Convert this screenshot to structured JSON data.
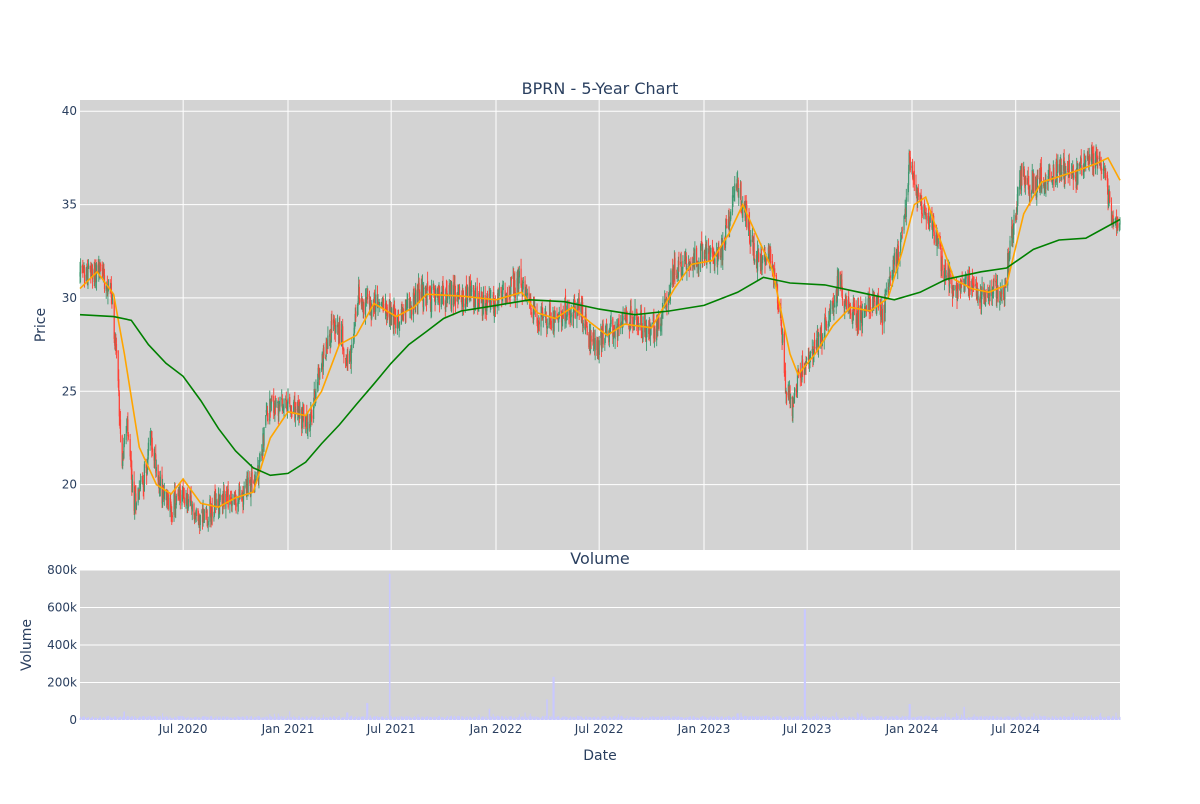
{
  "chart_data": [
    {
      "type": "candlestick",
      "title": "BPRN - 5-Year Chart",
      "xlabel": "",
      "ylabel": "Price",
      "ylim": [
        16.5,
        40.6
      ],
      "y_ticks": [
        20,
        25,
        30,
        35,
        40
      ],
      "xlim": [
        "2020-01-02",
        "2024-12-31"
      ],
      "grid": true,
      "legend": "none",
      "colors": {
        "increasing": "#3d9970",
        "decreasing": "#ff4136",
        "ma_short": "#ffa500",
        "ma_long": "#008000",
        "plot_bg": "#d3d3d3"
      },
      "price_keypoints": [
        [
          "2020-01-02",
          31.2
        ],
        [
          "2020-02-10",
          31.5
        ],
        [
          "2020-02-25",
          30.5
        ],
        [
          "2020-03-05",
          27.5
        ],
        [
          "2020-03-16",
          21.5
        ],
        [
          "2020-03-25",
          23.0
        ],
        [
          "2020-04-05",
          19.0
        ],
        [
          "2020-04-25",
          20.5
        ],
        [
          "2020-05-05",
          22.5
        ],
        [
          "2020-05-25",
          19.5
        ],
        [
          "2020-06-10",
          18.8
        ],
        [
          "2020-07-01",
          19.5
        ],
        [
          "2020-07-25",
          18.2
        ],
        [
          "2020-08-20",
          18.6
        ],
        [
          "2020-09-10",
          19.5
        ],
        [
          "2020-10-01",
          19.0
        ],
        [
          "2020-10-25",
          20.0
        ],
        [
          "2020-11-10",
          20.5
        ],
        [
          "2020-11-25",
          24.0
        ],
        [
          "2020-12-20",
          24.2
        ],
        [
          "2021-01-20",
          23.8
        ],
        [
          "2021-02-08",
          23.0
        ],
        [
          "2021-02-20",
          25.5
        ],
        [
          "2021-03-05",
          27.0
        ],
        [
          "2021-03-20",
          28.5
        ],
        [
          "2021-04-05",
          28.0
        ],
        [
          "2021-04-20",
          26.5
        ],
        [
          "2021-05-05",
          30.0
        ],
        [
          "2021-05-25",
          29.5
        ],
        [
          "2021-06-20",
          29.8
        ],
        [
          "2021-07-10",
          28.8
        ],
        [
          "2021-08-01",
          29.5
        ],
        [
          "2021-08-20",
          30.3
        ],
        [
          "2021-09-20",
          30.0
        ],
        [
          "2021-10-25",
          30.2
        ],
        [
          "2021-11-20",
          30.0
        ],
        [
          "2021-12-20",
          29.6
        ],
        [
          "2022-01-20",
          30.2
        ],
        [
          "2022-02-10",
          30.8
        ],
        [
          "2022-03-01",
          29.8
        ],
        [
          "2022-03-15",
          29.0
        ],
        [
          "2022-04-15",
          29.0
        ],
        [
          "2022-05-10",
          29.5
        ],
        [
          "2022-06-01",
          29.2
        ],
        [
          "2022-06-20",
          27.5
        ],
        [
          "2022-07-15",
          28.0
        ],
        [
          "2022-08-10",
          28.5
        ],
        [
          "2022-09-01",
          29.0
        ],
        [
          "2022-09-25",
          28.0
        ],
        [
          "2022-10-20",
          29.0
        ],
        [
          "2022-11-10",
          31.5
        ],
        [
          "2022-12-10",
          32.0
        ],
        [
          "2023-01-01",
          32.5
        ],
        [
          "2023-01-25",
          32.0
        ],
        [
          "2023-02-10",
          33.5
        ],
        [
          "2023-02-25",
          36.5
        ],
        [
          "2023-03-15",
          34.5
        ],
        [
          "2023-04-01",
          32.0
        ],
        [
          "2023-04-25",
          32.2
        ],
        [
          "2023-05-15",
          29.5
        ],
        [
          "2023-05-25",
          25.0
        ],
        [
          "2023-06-05",
          24.3
        ],
        [
          "2023-06-20",
          26.0
        ],
        [
          "2023-07-15",
          27.5
        ],
        [
          "2023-08-10",
          29.0
        ],
        [
          "2023-08-25",
          31.0
        ],
        [
          "2023-09-10",
          29.5
        ],
        [
          "2023-10-01",
          29.0
        ],
        [
          "2023-10-25",
          30.0
        ],
        [
          "2023-11-10",
          29.0
        ],
        [
          "2023-11-25",
          31.5
        ],
        [
          "2023-12-15",
          33.0
        ],
        [
          "2023-12-28",
          37.5
        ],
        [
          "2024-01-15",
          35.0
        ],
        [
          "2024-02-05",
          34.0
        ],
        [
          "2024-02-25",
          31.5
        ],
        [
          "2024-03-15",
          30.5
        ],
        [
          "2024-04-10",
          31.0
        ],
        [
          "2024-04-25",
          30.0
        ],
        [
          "2024-05-20",
          30.5
        ],
        [
          "2024-06-10",
          30.0
        ],
        [
          "2024-06-20",
          32.5
        ],
        [
          "2024-07-10",
          36.5
        ],
        [
          "2024-08-05",
          36.0
        ],
        [
          "2024-08-25",
          36.5
        ],
        [
          "2024-09-20",
          36.8
        ],
        [
          "2024-10-15",
          36.5
        ],
        [
          "2024-11-05",
          37.5
        ],
        [
          "2024-12-01",
          37.0
        ],
        [
          "2024-12-18",
          34.0
        ],
        [
          "2024-12-31",
          34.2
        ]
      ],
      "ma_short": [
        [
          "2020-01-02",
          30.5
        ],
        [
          "2020-02-01",
          31.4
        ],
        [
          "2020-03-01",
          30.2
        ],
        [
          "2020-03-20",
          27.0
        ],
        [
          "2020-04-15",
          22.0
        ],
        [
          "2020-05-15",
          20.0
        ],
        [
          "2020-06-10",
          19.5
        ],
        [
          "2020-07-01",
          20.3
        ],
        [
          "2020-08-01",
          19.0
        ],
        [
          "2020-09-01",
          18.8
        ],
        [
          "2020-10-01",
          19.3
        ],
        [
          "2020-11-01",
          19.6
        ],
        [
          "2020-12-01",
          22.5
        ],
        [
          "2021-01-01",
          23.9
        ],
        [
          "2021-02-01",
          23.7
        ],
        [
          "2021-03-01",
          25.0
        ],
        [
          "2021-04-01",
          27.5
        ],
        [
          "2021-05-01",
          28.0
        ],
        [
          "2021-06-01",
          29.7
        ],
        [
          "2021-07-10",
          29.0
        ],
        [
          "2021-08-10",
          29.5
        ],
        [
          "2021-09-01",
          30.2
        ],
        [
          "2021-11-01",
          30.1
        ],
        [
          "2022-01-01",
          29.9
        ],
        [
          "2022-02-15",
          30.3
        ],
        [
          "2022-03-15",
          29.2
        ],
        [
          "2022-04-15",
          28.9
        ],
        [
          "2022-05-15",
          29.5
        ],
        [
          "2022-06-15",
          28.7
        ],
        [
          "2022-07-15",
          28.0
        ],
        [
          "2022-08-15",
          28.6
        ],
        [
          "2022-10-01",
          28.4
        ],
        [
          "2022-11-10",
          30.5
        ],
        [
          "2022-12-10",
          31.8
        ],
        [
          "2023-01-15",
          32.0
        ],
        [
          "2023-02-15",
          33.5
        ],
        [
          "2023-03-10",
          35.0
        ],
        [
          "2023-04-01",
          33.5
        ],
        [
          "2023-05-01",
          31.5
        ],
        [
          "2023-06-01",
          27.0
        ],
        [
          "2023-06-15",
          25.9
        ],
        [
          "2023-07-15",
          27.0
        ],
        [
          "2023-08-15",
          28.5
        ],
        [
          "2023-09-15",
          29.5
        ],
        [
          "2023-10-20",
          29.3
        ],
        [
          "2023-11-20",
          30.0
        ],
        [
          "2023-12-15",
          32.5
        ],
        [
          "2024-01-05",
          35.0
        ],
        [
          "2024-01-25",
          35.4
        ],
        [
          "2024-02-15",
          33.5
        ],
        [
          "2024-03-15",
          31.0
        ],
        [
          "2024-04-15",
          30.5
        ],
        [
          "2024-05-15",
          30.3
        ],
        [
          "2024-06-15",
          30.7
        ],
        [
          "2024-07-15",
          34.5
        ],
        [
          "2024-08-15",
          36.2
        ],
        [
          "2024-09-15",
          36.5
        ],
        [
          "2024-10-15",
          36.8
        ],
        [
          "2024-11-20",
          37.2
        ],
        [
          "2024-12-10",
          37.5
        ],
        [
          "2024-12-31",
          36.3
        ]
      ],
      "ma_long": [
        [
          "2020-01-02",
          29.1
        ],
        [
          "2020-03-01",
          29.0
        ],
        [
          "2020-04-01",
          28.8
        ],
        [
          "2020-05-01",
          27.5
        ],
        [
          "2020-06-01",
          26.5
        ],
        [
          "2020-07-01",
          25.8
        ],
        [
          "2020-08-01",
          24.5
        ],
        [
          "2020-09-01",
          23.0
        ],
        [
          "2020-10-01",
          21.8
        ],
        [
          "2020-11-01",
          20.9
        ],
        [
          "2020-12-01",
          20.5
        ],
        [
          "2021-01-01",
          20.6
        ],
        [
          "2021-02-01",
          21.2
        ],
        [
          "2021-03-01",
          22.2
        ],
        [
          "2021-04-01",
          23.2
        ],
        [
          "2021-05-01",
          24.3
        ],
        [
          "2021-06-01",
          25.4
        ],
        [
          "2021-07-01",
          26.5
        ],
        [
          "2021-08-01",
          27.5
        ],
        [
          "2021-09-01",
          28.2
        ],
        [
          "2021-10-01",
          28.9
        ],
        [
          "2021-11-01",
          29.3
        ],
        [
          "2022-01-01",
          29.6
        ],
        [
          "2022-03-01",
          29.9
        ],
        [
          "2022-05-01",
          29.8
        ],
        [
          "2022-07-01",
          29.4
        ],
        [
          "2022-09-01",
          29.1
        ],
        [
          "2022-11-01",
          29.3
        ],
        [
          "2023-01-01",
          29.6
        ],
        [
          "2023-03-01",
          30.3
        ],
        [
          "2023-04-15",
          31.1
        ],
        [
          "2023-06-01",
          30.8
        ],
        [
          "2023-08-01",
          30.7
        ],
        [
          "2023-10-01",
          30.3
        ],
        [
          "2023-12-01",
          29.9
        ],
        [
          "2024-01-15",
          30.3
        ],
        [
          "2024-03-01",
          31.0
        ],
        [
          "2024-05-01",
          31.4
        ],
        [
          "2024-06-15",
          31.6
        ],
        [
          "2024-08-01",
          32.6
        ],
        [
          "2024-09-15",
          33.1
        ],
        [
          "2024-11-01",
          33.2
        ],
        [
          "2024-12-31",
          34.2
        ]
      ]
    },
    {
      "type": "bar",
      "title": "Volume",
      "xlabel": "Date",
      "ylabel": "Volume",
      "ylim": [
        0,
        800000
      ],
      "y_ticks": [
        0,
        200000,
        400000,
        600000,
        800000
      ],
      "y_tick_labels": [
        "0",
        "200k",
        "400k",
        "600k",
        "800k"
      ],
      "x_ticks": [
        "2020-07-01",
        "2021-01-01",
        "2021-07-01",
        "2022-01-01",
        "2022-07-01",
        "2023-01-01",
        "2023-07-01",
        "2024-01-01",
        "2024-07-01"
      ],
      "x_tick_labels": [
        "Jul 2020",
        "Jan 2021",
        "Jul 2021",
        "Jan 2022",
        "Jul 2022",
        "Jan 2023",
        "Jul 2023",
        "Jan 2024",
        "Jul 2024"
      ],
      "grid": true,
      "bar_color": "#c8c8ff",
      "baseline_volume": 15000,
      "spikes": [
        [
          "2021-05-20",
          90000
        ],
        [
          "2021-06-28",
          780000
        ],
        [
          "2021-12-20",
          60000
        ],
        [
          "2022-04-01",
          110000
        ],
        [
          "2022-04-12",
          230000
        ],
        [
          "2023-06-27",
          590000
        ],
        [
          "2023-12-28",
          85000
        ],
        [
          "2024-04-01",
          70000
        ],
        [
          "2021-04-15",
          40000
        ],
        [
          "2022-02-20",
          40000
        ],
        [
          "2020-03-20",
          45000
        ],
        [
          "2023-03-01",
          35000
        ]
      ]
    }
  ]
}
